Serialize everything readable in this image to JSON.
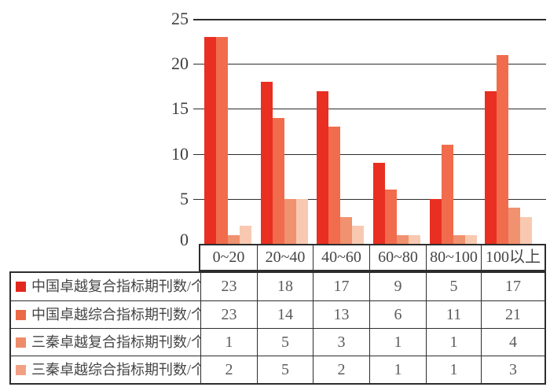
{
  "chart_data": {
    "type": "bar",
    "title": "",
    "xlabel": "",
    "ylabel": "",
    "categories": [
      "0~20",
      "20~40",
      "40~60",
      "60~80",
      "80~100",
      "100以上"
    ],
    "series": [
      {
        "name": "中国卓越复合指标期刊数/个",
        "color": "#e92e22",
        "swatch_color": "#e2281e",
        "values": [
          23,
          18,
          17,
          9,
          5,
          17
        ]
      },
      {
        "name": "中国卓越综合指标期刊数/个",
        "color": "#f16c4c",
        "swatch_color": "#ea6a47",
        "values": [
          23,
          14,
          13,
          6,
          11,
          21
        ]
      },
      {
        "name": "三秦卓越复合指标期刊数/个",
        "color": "#f0916f",
        "swatch_color": "#ee8c6a",
        "values": [
          1,
          5,
          3,
          1,
          1,
          4
        ]
      },
      {
        "name": "三秦卓越综合指标期刊数/个",
        "color": "#f8c9b0",
        "swatch_color": "#f2a084",
        "values": [
          2,
          5,
          2,
          1,
          1,
          3
        ]
      }
    ],
    "y_ticks": [
      25,
      20,
      15,
      10,
      5,
      0
    ],
    "ylim": [
      0,
      25
    ],
    "grid": true,
    "grid_color": "#2d2d2d",
    "axis_text_color": "#3e3e3e",
    "table_border_color": "#2d2d2d",
    "legend_position": "table-row-labels"
  }
}
